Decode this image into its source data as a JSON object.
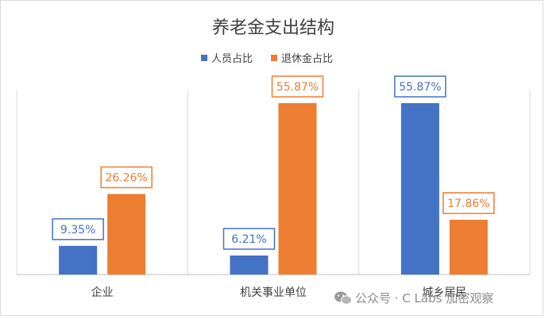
{
  "chart_data": {
    "type": "bar",
    "title": "养老金支出结构",
    "categories": [
      "企业",
      "机关事业单位",
      "城乡居民"
    ],
    "series": [
      {
        "name": "人员占比",
        "color": "#4472C4",
        "values": [
          9.35,
          6.21,
          55.87
        ],
        "labels": [
          "9.35%",
          "6.21%",
          "55.87%"
        ]
      },
      {
        "name": "退休金占比",
        "color": "#ED7D31",
        "values": [
          26.26,
          55.87,
          17.86
        ],
        "labels": [
          "26.26%",
          "55.87%",
          "17.86%"
        ]
      }
    ],
    "ylim": [
      0,
      60
    ],
    "grid": "vertical separators",
    "legend": "top-center"
  },
  "watermark": {
    "text": "公众号 · C Labs 加密观察",
    "icon": "wechat-icon"
  }
}
